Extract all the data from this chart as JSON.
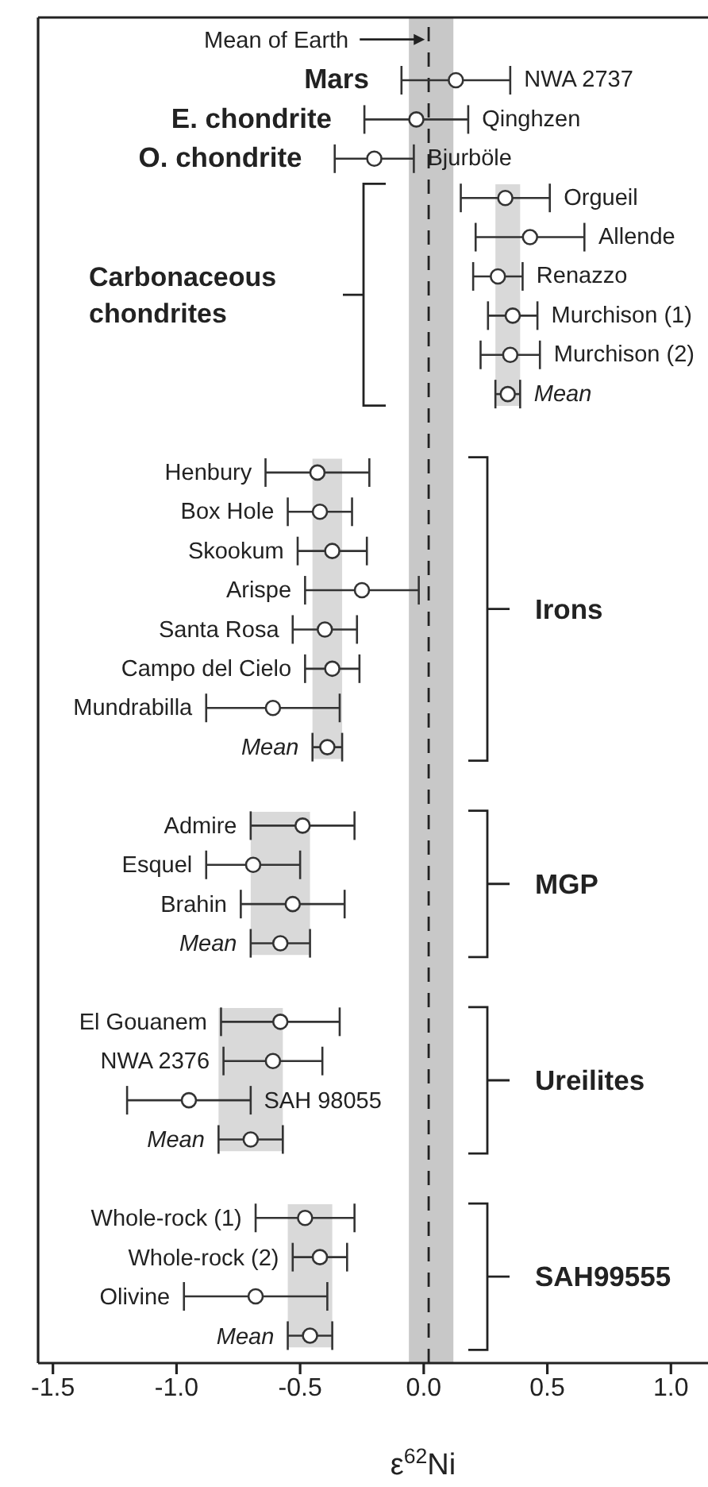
{
  "chart_data": {
    "type": "scatter",
    "orientation": "horizontal",
    "xlabel": "ε$^{62}$Ni",
    "categories": [
      null,
      "NWA 2737",
      "Qinghzen",
      "Bjurböle",
      "Orgueil",
      "Allende",
      "Renazzo",
      "Murchison (1)",
      "Murchison (2)",
      "Mean",
      null,
      "Henbury",
      "Box Hole",
      "Skookum",
      "Arispe",
      "Santa Rosa",
      "Campo del Cielo",
      "Mundrabilla",
      "Mean",
      null,
      "Admire",
      "Esquel",
      "Brahin",
      "Mean",
      null,
      "El Gouanem",
      "NWA 2376",
      "SAH 98055",
      "Mean",
      null,
      "Whole-rock (1)",
      "Whole-rock (2)",
      "Olivine",
      "Mean"
    ],
    "series": [
      {
        "color": "#333333",
        "values": [
          null,
          0.13,
          -0.03,
          -0.2,
          null,
          null,
          null,
          null,
          null,
          null,
          null,
          null,
          null,
          null,
          null,
          null,
          null,
          null,
          null,
          null,
          null,
          null,
          null,
          null,
          null,
          null,
          null,
          null,
          null,
          null,
          null,
          null,
          null,
          null
        ],
        "errors": [
          null,
          0.22,
          0.21,
          0.16,
          null,
          null,
          null,
          null,
          null,
          null,
          null,
          null,
          null,
          null,
          null,
          null,
          null,
          null,
          null,
          null,
          null,
          null,
          null,
          null,
          null,
          null,
          null,
          null,
          null,
          null,
          null,
          null,
          null,
          null
        ]
      },
      {
        "color": "#333333",
        "values": [
          null,
          null,
          null,
          null,
          0.33,
          0.43,
          0.3,
          0.36,
          0.35,
          null,
          null,
          -0.43,
          -0.42,
          -0.37,
          -0.25,
          -0.4,
          -0.37,
          -0.61,
          null,
          null,
          -0.49,
          -0.69,
          -0.53,
          null,
          null,
          -0.58,
          -0.61,
          -0.95,
          null,
          null,
          -0.48,
          -0.42,
          -0.68,
          null
        ],
        "errors": [
          null,
          null,
          null,
          null,
          0.18,
          0.22,
          0.1,
          0.1,
          0.12,
          null,
          null,
          0.21,
          0.13,
          0.14,
          0.23,
          0.13,
          0.11,
          0.27,
          null,
          null,
          0.21,
          0.19,
          0.21,
          null,
          null,
          0.24,
          0.2,
          0.25,
          null,
          null,
          0.2,
          0.11,
          0.29,
          null
        ]
      },
      {
        "color": "#333333",
        "values": [
          null,
          null,
          null,
          null,
          null,
          null,
          null,
          null,
          null,
          0.34,
          null,
          null,
          null,
          null,
          null,
          null,
          null,
          null,
          -0.39,
          null,
          null,
          null,
          null,
          -0.58,
          null,
          null,
          null,
          null,
          -0.7,
          null,
          null,
          null,
          null,
          -0.46
        ],
        "errors": [
          null,
          null,
          null,
          null,
          null,
          null,
          null,
          null,
          null,
          0.05,
          null,
          null,
          null,
          null,
          null,
          null,
          null,
          null,
          0.06,
          null,
          null,
          null,
          null,
          0.12,
          null,
          null,
          null,
          null,
          0.13,
          null,
          null,
          null,
          null,
          0.09
        ]
      }
    ],
    "xlim": [
      -1.56,
      1.15
    ],
    "xticks": [
      -1.5,
      {
        "value": -1,
        "label": "-1.0"
      },
      -0.5,
      {
        "value": 0,
        "label": "0.0"
      },
      0.5,
      {
        "value": 1,
        "label": "1.0"
      }
    ],
    "ref_lines": [
      {
        "axis": "x",
        "value": 0.02,
        "label": "Mean of Earth",
        "line_style": "dashed",
        "color": "#222222"
      }
    ],
    "bands": [
      {
        "axis": "x",
        "from": -0.06,
        "to": 0.12,
        "color": "#c8c8c8"
      },
      {
        "axis": "x",
        "from": 0.29,
        "to": 0.39,
        "color": "#d9d9d9"
      },
      {
        "axis": "x",
        "from": -0.45,
        "to": -0.33,
        "color": "#d9d9d9"
      },
      {
        "axis": "x",
        "from": -0.7,
        "to": -0.46,
        "color": "#d9d9d9"
      },
      {
        "axis": "x",
        "from": -0.83,
        "to": -0.57,
        "color": "#d9d9d9"
      },
      {
        "axis": "x",
        "from": -0.55,
        "to": -0.37,
        "color": "#d9d9d9"
      }
    ],
    "annotations": [
      "Mars",
      "E. chondrite",
      "O. chondrite",
      "Carbonaceous chondrites",
      "Irons",
      "MGP",
      "Ureilites",
      "SAH99555"
    ],
    "marker": "circle",
    "grid": false,
    "legend": false,
    "tick_labels": "x"
  }
}
